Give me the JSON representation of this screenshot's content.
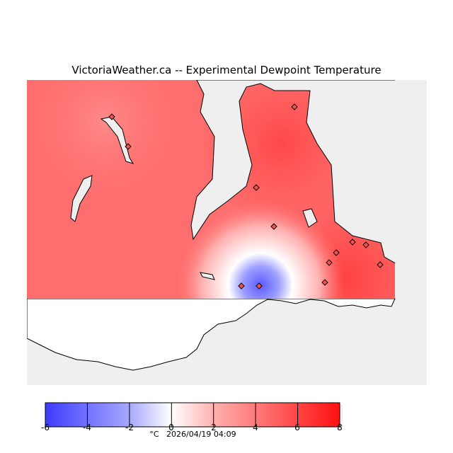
{
  "title": "VictoriaWeather.ca -- Experimental Dewpoint Temperature",
  "colorbar": {
    "ticks": [
      "-6",
      "-4",
      "-2",
      "0",
      "2",
      "4",
      "6",
      "8"
    ],
    "min": -6,
    "max": 8,
    "colors": {
      "low": "#3c3cff",
      "mid": "#ffffff",
      "high": "#ff1010"
    }
  },
  "footer": {
    "unit": "°C",
    "timestamp": "2026/04/19 04:09"
  },
  "map": {
    "water_color": "#efefef",
    "field_color": "#ff6a6a",
    "stations": 13
  }
}
